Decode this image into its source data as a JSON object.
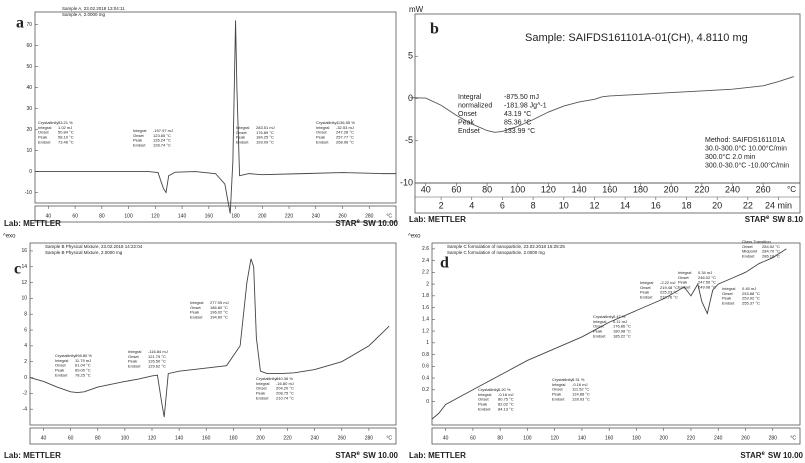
{
  "chart_data": [
    {
      "type": "line",
      "label": "a",
      "header": [
        "Sample A, 23.02.2018 13:04:11",
        "Sample A, 2.0000 mg"
      ],
      "x": [
        30,
        40,
        60,
        80,
        100,
        115,
        122,
        126,
        128,
        130,
        135,
        150,
        165,
        172,
        176,
        178,
        180,
        181,
        183,
        190,
        200,
        230,
        260,
        290,
        300
      ],
      "values": [
        0,
        0,
        0,
        0,
        0,
        0,
        -0.5,
        -8,
        -10,
        -2,
        -0.3,
        0,
        -1,
        -6,
        -20,
        5,
        72,
        40,
        -2,
        -1,
        -1.5,
        -1,
        -0.5,
        -1,
        -1
      ],
      "color": "#444444",
      "xlim": [
        30,
        300
      ],
      "xticks": [
        40,
        60,
        80,
        100,
        120,
        140,
        160,
        180,
        200,
        220,
        240,
        260,
        280
      ],
      "ylim": [
        -15,
        76
      ],
      "yticks": [
        -10,
        0,
        10,
        20,
        30,
        40,
        50,
        60,
        70
      ],
      "x_unit": "°C",
      "annotations": [
        [
          [
            "Crystallinity",
            "33.21 %"
          ],
          [
            "Integral",
            "1.02 mJ"
          ],
          [
            "Onset",
            "50.84 °C"
          ],
          [
            "Peak",
            "58.10 °C"
          ],
          [
            "Endset",
            "73.46 °C"
          ]
        ],
        [
          [
            "Integral",
            "-197.97 mJ"
          ],
          [
            "Onset",
            "123.65 °C"
          ],
          [
            "Peak",
            "126.24 °C"
          ],
          [
            "Endset",
            "128.74 °C"
          ]
        ],
        [
          [
            "Integral",
            "283.51 mJ"
          ],
          [
            "Onset",
            "176.89 °C"
          ],
          [
            "Peak",
            "184.25 °C"
          ],
          [
            "Endset",
            "193.09 °C"
          ]
        ],
        [
          [
            "Crystallinity",
            "1136.55 %"
          ],
          [
            "Integral",
            "-32.53 mJ"
          ],
          [
            "Onset",
            "247.28 °C"
          ],
          [
            "Peak",
            "257.77 °C"
          ],
          [
            "Endset",
            "268.96 °C"
          ]
        ]
      ],
      "lab": "Lab: METTLER",
      "star": "STAR",
      "star_sup": "e",
      "software": "SW 10.00"
    },
    {
      "type": "line",
      "label": "b",
      "header": [
        "Sample: SAIFDS161101A-01(CH), 4.8110 mg"
      ],
      "x": [
        30,
        40,
        50,
        60,
        70,
        80,
        85,
        90,
        100,
        110,
        120,
        130,
        140,
        150,
        155,
        160,
        180,
        200,
        220,
        240,
        260,
        270,
        280
      ],
      "values": [
        0.1,
        0.05,
        -0.8,
        -2,
        -3,
        -3.8,
        -4,
        -3.9,
        -3.3,
        -2.5,
        -1.6,
        -0.9,
        -0.4,
        -0.1,
        0.2,
        0.3,
        0.5,
        0.7,
        0.9,
        1.1,
        1.5,
        2,
        2.6
      ],
      "color": "#555555",
      "xlim": [
        33,
        284
      ],
      "xticks": [
        40,
        60,
        80,
        100,
        120,
        140,
        160,
        180,
        200,
        220,
        240,
        260
      ],
      "x2lim": [
        0.3,
        25.4
      ],
      "x2ticks": [
        2,
        4,
        6,
        8,
        10,
        12,
        14,
        16,
        18,
        20,
        22,
        {
          "value": 24,
          "label": "24 min"
        }
      ],
      "ylim": [
        -10,
        10
      ],
      "yticks": [
        -10,
        -5,
        0,
        5
      ],
      "x_unit": "°C",
      "y_unit": "mW",
      "annotations": [
        [
          [
            "Integral",
            "-875.50 mJ"
          ],
          [
            "normalized",
            "-181.98 Jg^-1"
          ],
          [
            "Onset",
            "43.19 °C"
          ],
          [
            "Peak",
            "85.36 °C"
          ],
          [
            "Endset",
            "133.99 °C"
          ]
        ],
        [
          [
            "Method: SAIFDS161101A"
          ],
          [
            "30.0-300.0°C 10.00°C/min"
          ],
          [
            "300.0°C 2.0 min"
          ],
          [
            "300.0-30.0°C -10.00°C/min"
          ]
        ]
      ],
      "lab": "Lab: METTLER",
      "star": "STAR",
      "star_sup": "e",
      "software": "SW 8.10"
    },
    {
      "type": "line",
      "label": "c",
      "header": [
        "Sample B Physical Mixture, 23.02.2018 14:22:04",
        "Sample B Physical Mixture, 2.0000 mg"
      ],
      "x": [
        30,
        40,
        50,
        60,
        65,
        70,
        80,
        100,
        110,
        120,
        124,
        127,
        129,
        132,
        140,
        160,
        175,
        185,
        190,
        193,
        195,
        197,
        200,
        205,
        215,
        225,
        240,
        260,
        280,
        295
      ],
      "values": [
        0,
        -0.5,
        -1.2,
        -1.8,
        -1.9,
        -1.8,
        -1.2,
        -0.5,
        -0.2,
        0.2,
        0.3,
        -3,
        -5,
        0.5,
        0.8,
        1.2,
        1.5,
        4,
        12,
        15,
        14,
        5,
        0.8,
        0.5,
        0.5,
        0.6,
        1,
        2,
        4,
        6.5
      ],
      "color": "#444444",
      "xlim": [
        30,
        300
      ],
      "xticks": [
        40,
        60,
        80,
        100,
        120,
        140,
        160,
        180,
        200,
        220,
        240,
        260,
        280
      ],
      "ylim": [
        -6,
        17
      ],
      "yticks": [
        -4,
        -2,
        0,
        2,
        4,
        6,
        8,
        10,
        12,
        14,
        16
      ],
      "x_unit": "°C",
      "y_unit": "^exo",
      "annotations": [
        [
          [
            "Crystallinity",
            "598.80 %"
          ],
          [
            "Integral",
            "11.79 mJ"
          ],
          [
            "Onset",
            "61.04 °C"
          ],
          [
            "Peak",
            "69.00 °C"
          ],
          [
            "Endset",
            "78.25 °C"
          ]
        ],
        [
          [
            "Integral",
            "-116.84 mJ"
          ],
          [
            "Onset",
            "121.79 °C"
          ],
          [
            "Peak",
            "126.50 °C"
          ],
          [
            "Endset",
            "129.62 °C"
          ]
        ],
        [
          [
            "Integral",
            "277.05 mJ"
          ],
          [
            "Onset",
            "186.80 °C"
          ],
          [
            "Peak",
            "196.02 °C"
          ],
          [
            "Endset",
            "194.60 °C"
          ]
        ],
        [
          [
            "Crystallinity",
            "840.36 %"
          ],
          [
            "Integral",
            "-16.80 mJ"
          ],
          [
            "Onset",
            "204.20 °C"
          ],
          [
            "Peak",
            "208.75 °C"
          ],
          [
            "Endset",
            "210.74 °C"
          ]
        ]
      ],
      "lab": "Lab: METTLER",
      "star": "STAR",
      "star_sup": "e",
      "software": "SW 10.00"
    },
    {
      "type": "line",
      "label": "d",
      "header": [
        "Sample C formulation of nanoparticle, 23.02.2018 15:25:25",
        "Sample C formulation of nanoparticle, 2.0000 mg"
      ],
      "x": [
        30,
        35,
        40,
        60,
        80,
        100,
        120,
        140,
        160,
        180,
        200,
        215,
        220,
        225,
        228,
        232,
        236,
        240,
        250,
        260,
        270,
        280,
        290
      ],
      "values": [
        -0.3,
        -0.2,
        -0.05,
        0.2,
        0.45,
        0.7,
        0.9,
        1.1,
        1.35,
        1.55,
        1.75,
        1.95,
        1.8,
        2.0,
        1.7,
        1.5,
        1.9,
        2.0,
        2.1,
        2.2,
        2.35,
        2.45,
        2.6
      ],
      "color": "#444444",
      "xlim": [
        30,
        300
      ],
      "xticks": [
        40,
        60,
        80,
        100,
        120,
        140,
        160,
        180,
        200,
        220,
        240,
        260,
        280
      ],
      "ylim": [
        -0.4,
        2.7
      ],
      "yticks": [
        0,
        0.2,
        0.4,
        0.6,
        0.8,
        1,
        1.2,
        1.4,
        1.6,
        1.8,
        2,
        2.2,
        2.4,
        2.6
      ],
      "x_unit": "°C",
      "y_unit": "^exo",
      "annotations": [
        [
          [
            "Crystallinity",
            "5.20 %"
          ],
          [
            "Integral",
            "-0.16 mJ"
          ],
          [
            "Onset",
            "80.75 °C"
          ],
          [
            "Peak",
            "82.02 °C"
          ],
          [
            "Endset",
            "84.13 °C"
          ]
        ],
        [
          [
            "Crystallinity",
            "5.31 %"
          ],
          [
            "Integral",
            "-0.16 mJ"
          ],
          [
            "Onset",
            "111.52 °C"
          ],
          [
            "Peak",
            "124.88 °C"
          ],
          [
            "Endset",
            "128.93 °C"
          ]
        ],
        [
          [
            "Crystallinity",
            "0.47 %"
          ],
          [
            "Integral",
            "0.11 mJ"
          ],
          [
            "Onset",
            "176.86 °C"
          ],
          [
            "Peak",
            "180.98 °C"
          ],
          [
            "Endset",
            "185.22 °C"
          ]
        ],
        [
          [
            "Integral",
            "-2.22 mJ"
          ],
          [
            "Onset",
            "219.48 °C"
          ],
          [
            "Peak",
            "225.23 °C"
          ],
          [
            "Endset",
            "232.76 °C"
          ]
        ],
        [
          [
            "Integral",
            "0.34 mJ"
          ],
          [
            "Onset",
            "246.02 °C"
          ],
          [
            "Peak",
            "247.50 °C"
          ],
          [
            "Endset",
            "249.08 °C"
          ]
        ],
        [
          [
            "Integral",
            "0.45 mJ"
          ],
          [
            "Onset",
            "253.88 °C"
          ],
          [
            "Peak",
            "253.92 °C"
          ],
          [
            "Endset",
            "255.37 °C"
          ]
        ],
        [
          [
            "Glass Transition"
          ],
          [
            "Onset",
            "284.52 °C"
          ],
          [
            "Midpoint",
            "284.70 °C"
          ],
          [
            "Endset",
            "286.18 °C"
          ]
        ]
      ],
      "lab": "Lab: METTLER",
      "star": "STAR",
      "star_sup": "e",
      "software": "SW 10.00"
    }
  ]
}
